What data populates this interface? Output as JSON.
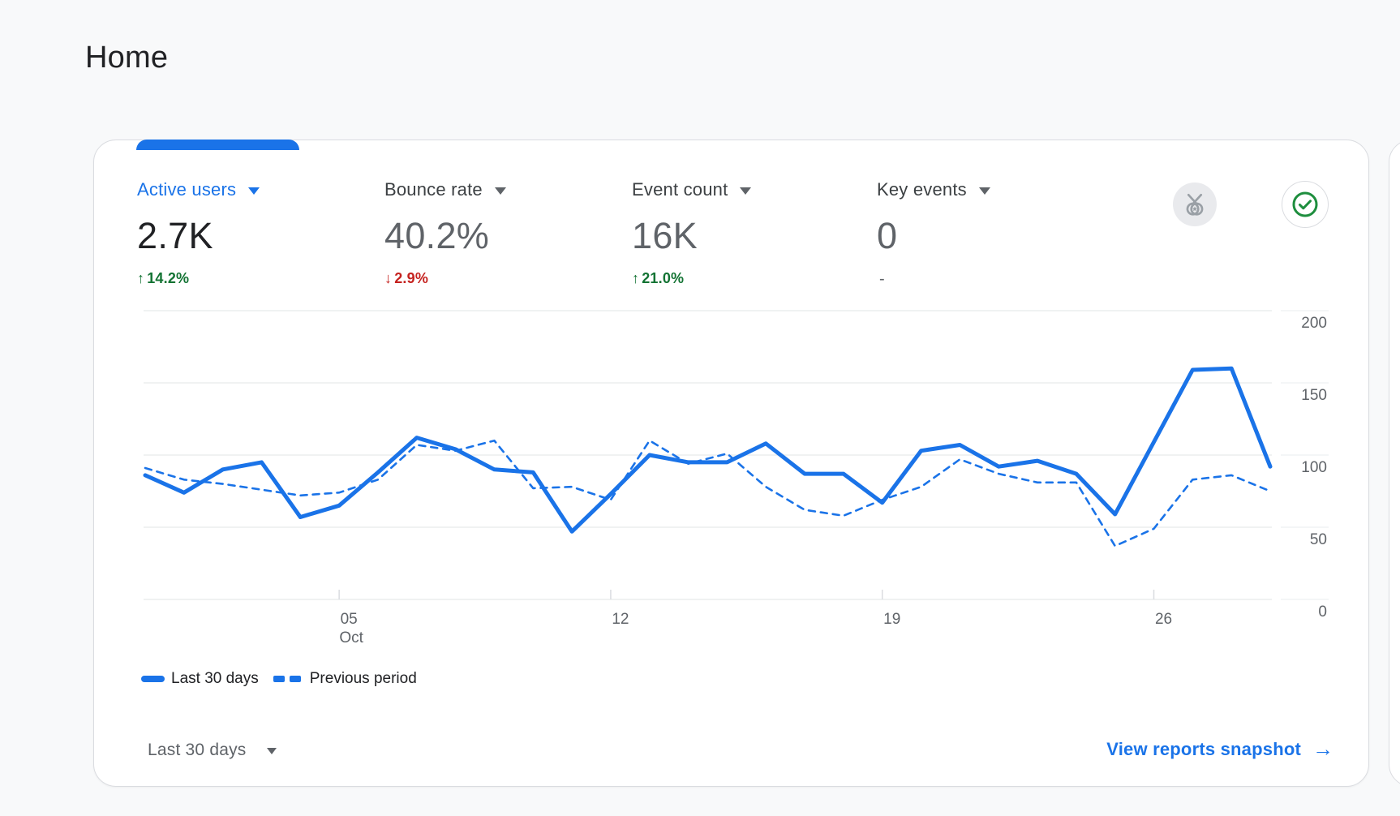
{
  "page": {
    "title": "Home"
  },
  "colors": {
    "accent": "#1a73e8",
    "positive": "#137333",
    "negative": "#c5221f",
    "text_dark": "#202124",
    "text_gray": "#5f6368"
  },
  "card": {
    "metrics": [
      {
        "label": "Active users",
        "value": "2.7K",
        "change": "14.2%",
        "direction": "up",
        "active": true
      },
      {
        "label": "Bounce rate",
        "value": "40.2%",
        "change": "2.9%",
        "direction": "down",
        "active": false
      },
      {
        "label": "Event count",
        "value": "16K",
        "change": "21.0%",
        "direction": "up",
        "active": false
      },
      {
        "label": "Key events",
        "value": "0",
        "change": "-",
        "direction": "none",
        "active": false
      }
    ],
    "icons": {
      "benchmark": "medal-icon",
      "data_quality": "check-circle-icon"
    },
    "legend": [
      {
        "label": "Last 30 days",
        "style": "solid"
      },
      {
        "label": "Previous period",
        "style": "dashed"
      }
    ],
    "footer": {
      "range_label": "Last 30 days",
      "link_label": "View reports snapshot",
      "arrow": "→"
    }
  },
  "chart_data": {
    "type": "line",
    "num_points": 30,
    "ylim": [
      0,
      200
    ],
    "yticks": [
      0,
      50,
      100,
      150,
      200
    ],
    "xticks": [
      {
        "index": 5,
        "label": "05",
        "sublabel": "Oct"
      },
      {
        "index": 12,
        "label": "12",
        "sublabel": ""
      },
      {
        "index": 19,
        "label": "19",
        "sublabel": ""
      },
      {
        "index": 26,
        "label": "26",
        "sublabel": ""
      }
    ],
    "grid": true,
    "legend_position": "bottom",
    "line_color": "#1a73e8",
    "series": [
      {
        "name": "Last 30 days",
        "style": "solid",
        "values": [
          86,
          74,
          90,
          95,
          57,
          65,
          88,
          112,
          104,
          90,
          88,
          47,
          73,
          100,
          95,
          95,
          108,
          87,
          87,
          67,
          103,
          107,
          92,
          96,
          87,
          59,
          109,
          159,
          160,
          92
        ]
      },
      {
        "name": "Previous period",
        "style": "dashed",
        "values": [
          91,
          83,
          80,
          76,
          72,
          74,
          83,
          107,
          103,
          110,
          77,
          78,
          69,
          110,
          94,
          101,
          78,
          62,
          58,
          69,
          78,
          97,
          87,
          81,
          81,
          37,
          49,
          83,
          86,
          75
        ]
      }
    ]
  }
}
